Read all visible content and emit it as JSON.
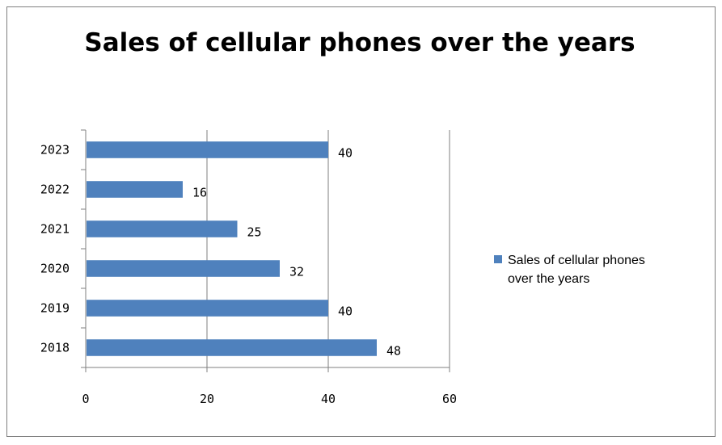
{
  "chart_data": {
    "type": "bar",
    "orientation": "horizontal",
    "title": "Sales of cellular phones over the years",
    "categories": [
      "2018",
      "2019",
      "2020",
      "2021",
      "2022",
      "2023"
    ],
    "series": [
      {
        "name": "Sales of cellular phones over the years",
        "values": [
          48,
          40,
          32,
          25,
          16,
          40
        ]
      }
    ],
    "data_labels": [
      "48",
      "40",
      "32",
      "25",
      "16",
      "40"
    ],
    "x_ticks": [
      "0",
      "20",
      "40",
      "60"
    ],
    "xlim": [
      0,
      60
    ],
    "grid": true,
    "legend": {
      "placement": "right",
      "lines": [
        "Sales of cellular phones",
        "over the years"
      ]
    },
    "colors": {
      "bar": "#4f81bd",
      "grid": "#7f7f7f",
      "axis": "#7f7f7f"
    }
  }
}
